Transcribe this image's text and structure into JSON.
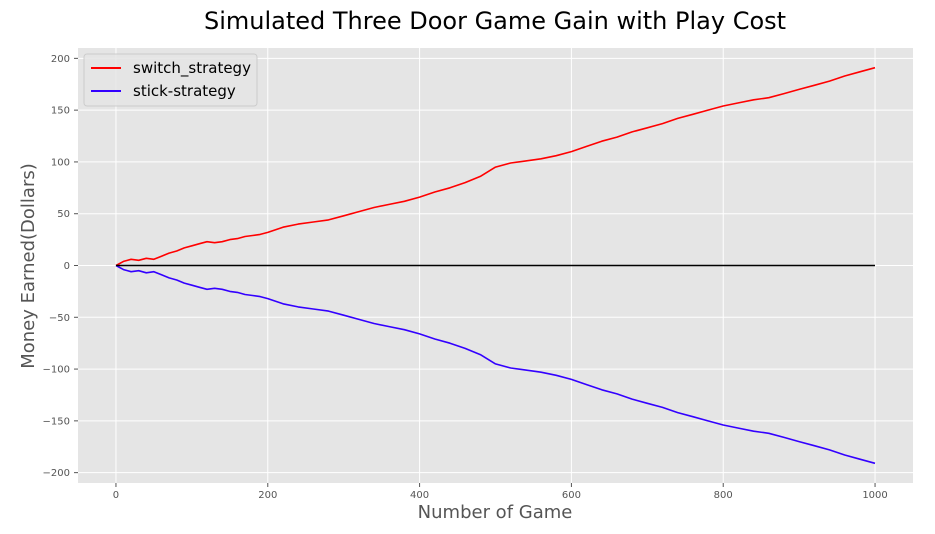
{
  "chart_data": {
    "type": "line",
    "title": "Simulated Three Door Game Gain with Play Cost",
    "xlabel": "Number of Game",
    "ylabel": "Money Earned(Dollars)",
    "xlim": [
      -50,
      1050
    ],
    "ylim": [
      -210,
      210
    ],
    "x_ticks": [
      0,
      200,
      400,
      600,
      800,
      1000
    ],
    "x_tick_labels": [
      "0",
      "200",
      "400",
      "600",
      "800",
      "1000"
    ],
    "y_ticks": [
      200,
      150,
      100,
      50,
      0,
      -50,
      -100,
      -150,
      -200
    ],
    "y_tick_labels": [
      "200",
      "150",
      "100",
      "50",
      "0",
      "−50",
      "−100",
      "−150",
      "−200"
    ],
    "grid": true,
    "legend_position": "top-left",
    "background": "#e5e5e5",
    "series": [
      {
        "name": "switch_strategy",
        "color": "#ff0000",
        "x": [
          0,
          10,
          20,
          30,
          40,
          50,
          60,
          70,
          80,
          90,
          100,
          110,
          120,
          130,
          140,
          150,
          160,
          170,
          180,
          190,
          200,
          220,
          240,
          260,
          280,
          300,
          320,
          340,
          360,
          380,
          400,
          420,
          440,
          460,
          480,
          500,
          520,
          540,
          560,
          580,
          600,
          620,
          640,
          660,
          680,
          700,
          720,
          740,
          760,
          780,
          800,
          820,
          840,
          860,
          880,
          900,
          920,
          940,
          960,
          980,
          1000
        ],
        "y": [
          0,
          4,
          6,
          5,
          7,
          6,
          9,
          12,
          14,
          17,
          19,
          21,
          23,
          22,
          23,
          25,
          26,
          28,
          29,
          30,
          32,
          37,
          40,
          42,
          44,
          48,
          52,
          56,
          59,
          62,
          66,
          71,
          75,
          80,
          86,
          95,
          99,
          101,
          103,
          106,
          110,
          115,
          120,
          124,
          129,
          133,
          137,
          142,
          146,
          150,
          154,
          157,
          160,
          162,
          166,
          170,
          174,
          178,
          183,
          187,
          191
        ]
      },
      {
        "name": "stick-strategy",
        "color": "#3300ff",
        "x": [
          0,
          10,
          20,
          30,
          40,
          50,
          60,
          70,
          80,
          90,
          100,
          110,
          120,
          130,
          140,
          150,
          160,
          170,
          180,
          190,
          200,
          220,
          240,
          260,
          280,
          300,
          320,
          340,
          360,
          380,
          400,
          420,
          440,
          460,
          480,
          500,
          520,
          540,
          560,
          580,
          600,
          620,
          640,
          660,
          680,
          700,
          720,
          740,
          760,
          780,
          800,
          820,
          840,
          860,
          880,
          900,
          920,
          940,
          960,
          980,
          1000
        ],
        "y": [
          0,
          -4,
          -6,
          -5,
          -7,
          -6,
          -9,
          -12,
          -14,
          -17,
          -19,
          -21,
          -23,
          -22,
          -23,
          -25,
          -26,
          -28,
          -29,
          -30,
          -32,
          -37,
          -40,
          -42,
          -44,
          -48,
          -52,
          -56,
          -59,
          -62,
          -66,
          -71,
          -75,
          -80,
          -86,
          -95,
          -99,
          -101,
          -103,
          -106,
          -110,
          -115,
          -120,
          -124,
          -129,
          -133,
          -137,
          -142,
          -146,
          -150,
          -154,
          -157,
          -160,
          -162,
          -166,
          -170,
          -174,
          -178,
          -183,
          -187,
          -191
        ]
      },
      {
        "name": "",
        "color": "#000000",
        "x": [
          0,
          1000
        ],
        "y": [
          0,
          0
        ]
      }
    ],
    "legend": [
      {
        "label": "switch_strategy",
        "color": "#ff0000"
      },
      {
        "label": "stick-strategy",
        "color": "#3300ff"
      }
    ]
  }
}
